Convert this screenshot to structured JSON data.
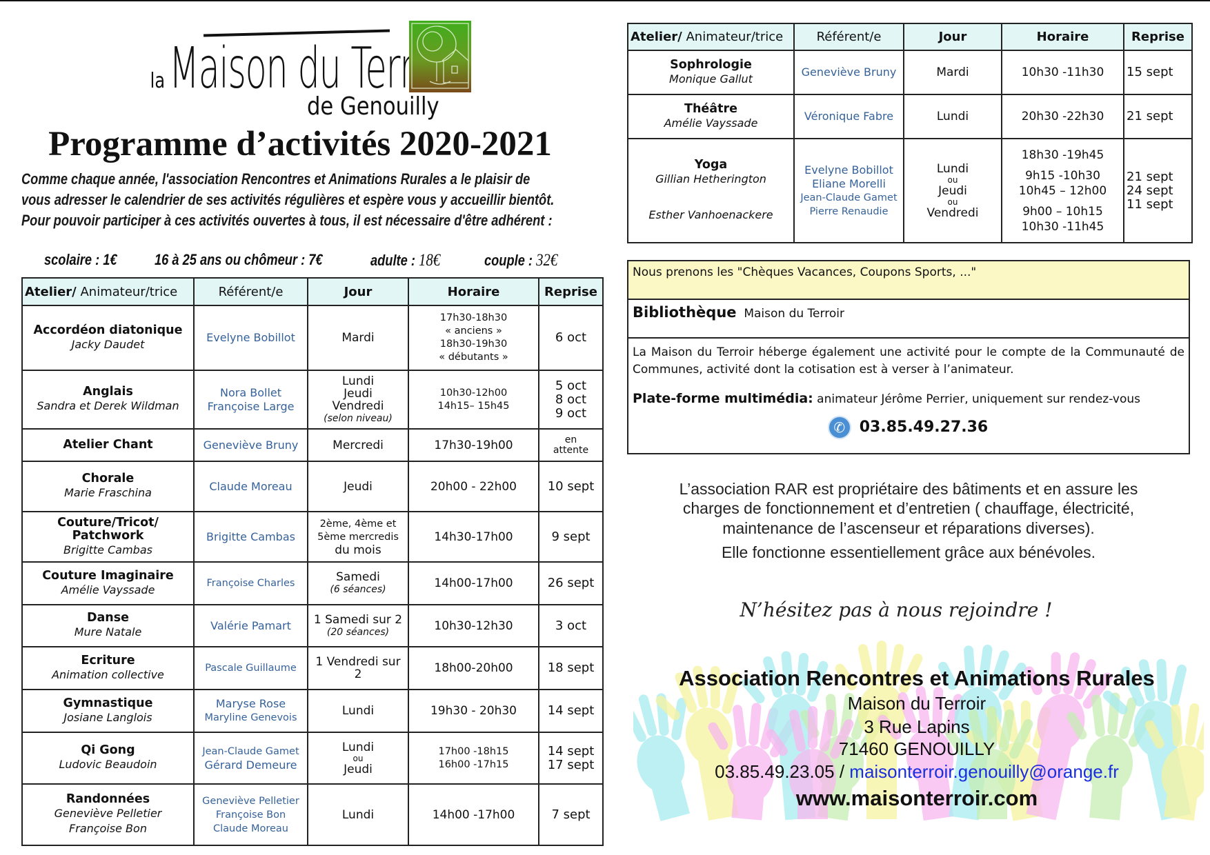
{
  "logo": {
    "prefix": "la",
    "name": "Maison du Terroir",
    "sub": "de Genouilly"
  },
  "title": "Programme d’activités 2020-2021",
  "intro": [
    "Comme chaque année, l'association Rencontres et Animations Rurales a le plaisir de",
    "vous adresser le calendrier de ses activités régulières et espère vous y accueillir bientôt.",
    "Pour pouvoir participer à ces activités ouvertes à tous, il est nécessaire d'être adhérent :"
  ],
  "prices": [
    {
      "label": "scolaire : ",
      "value": "1€"
    },
    {
      "label": "16 à 25 ans ou chômeur : ",
      "value": "7€"
    },
    {
      "label": "adulte : ",
      "value": "18€"
    },
    {
      "label": "couple : ",
      "value": "32€"
    }
  ],
  "headers": {
    "atelier": "Atelier/",
    "animateur": " Animateur/trice",
    "referent": "Référent/e",
    "jour": "Jour",
    "horaire": "Horaire",
    "reprise": "Reprise"
  },
  "left_rows": [
    {
      "name": [
        "Accordéon diatonique"
      ],
      "animators": [
        "Jacky Daudet"
      ],
      "referents": [
        "Evelyne Bobillot"
      ],
      "jour": [
        "Mardi"
      ],
      "horaire": [
        "17h30-18h30",
        "« anciens »",
        "18h30-19h30",
        "« débutants »"
      ],
      "reprise": [
        "6 oct"
      ]
    },
    {
      "name": [
        "Anglais"
      ],
      "animators": [
        "Sandra  et Derek Wildman"
      ],
      "referents": [
        "Nora Bollet",
        "Françoise Large"
      ],
      "jour": [
        "Lundi",
        "Jeudi",
        "Vendredi"
      ],
      "jour_note": "(selon niveau)",
      "horaire": [
        "10h30-12h00",
        "14h15– 15h45"
      ],
      "reprise": [
        "5 oct",
        "8 oct",
        "9 oct"
      ]
    },
    {
      "name": [
        "Atelier Chant"
      ],
      "animators": [],
      "referents": [
        "Geneviève Bruny"
      ],
      "jour": [
        "Mercredi"
      ],
      "horaire": [
        "17h30-19h00"
      ],
      "reprise": [
        "en",
        "attente"
      ]
    },
    {
      "name": [
        "Chorale"
      ],
      "animators": [
        "Marie Fraschina"
      ],
      "referents": [
        "Claude Moreau"
      ],
      "jour": [
        "Jeudi"
      ],
      "horaire": [
        "20h00 - 22h00"
      ],
      "reprise": [
        "10 sept"
      ]
    },
    {
      "name": [
        "Couture/Tricot/",
        "Patchwork"
      ],
      "animators": [
        "Brigitte Cambas"
      ],
      "referents": [
        "Brigitte Cambas"
      ],
      "jour": [
        "2ème, 4ème et",
        "5ème mercredis",
        "du mois"
      ],
      "horaire": [
        "14h30-17h00"
      ],
      "reprise": [
        "9 sept"
      ]
    },
    {
      "name": [
        "Couture Imaginaire"
      ],
      "animators": [
        "Amélie Vayssade"
      ],
      "referents": [
        "Françoise Charles"
      ],
      "jour": [
        "Samedi"
      ],
      "jour_note": "(6 séances)",
      "horaire": [
        "14h00-17h00"
      ],
      "reprise": [
        "26 sept"
      ]
    },
    {
      "name": [
        "Danse"
      ],
      "animators": [
        "Mure Natale"
      ],
      "referents": [
        "Valérie Pamart"
      ],
      "jour": [
        "1 Samedi sur 2"
      ],
      "jour_note": "(20 séances)",
      "horaire": [
        "10h30-12h30"
      ],
      "reprise": [
        "3 oct"
      ]
    },
    {
      "name": [
        "Ecriture"
      ],
      "animators": [
        "Animation collective"
      ],
      "referents": [
        "Pascale Guillaume"
      ],
      "jour": [
        "1 Vendredi sur",
        "2"
      ],
      "horaire": [
        "18h00-20h00"
      ],
      "reprise": [
        "18 sept"
      ]
    },
    {
      "name": [
        "Gymnastique"
      ],
      "animators": [
        "Josiane Langlois"
      ],
      "referents": [
        "Maryse Rose",
        "Maryline Genevois"
      ],
      "jour": [
        "Lundi"
      ],
      "horaire": [
        "19h30 - 20h30"
      ],
      "reprise": [
        "14 sept"
      ]
    },
    {
      "name": [
        "Qi Gong"
      ],
      "animators": [
        "Ludovic Beaudoin"
      ],
      "referents": [
        "Jean-Claude Gamet",
        "Gérard Demeure"
      ],
      "jour": [
        "Lundi",
        "ou",
        "Jeudi"
      ],
      "horaire": [
        "17h00 -18h15",
        "16h00 -17h15"
      ],
      "reprise": [
        "14 sept",
        "17 sept"
      ]
    },
    {
      "name": [
        "Randonnées"
      ],
      "animators": [
        "Geneviève Pelletier",
        "Françoise Bon"
      ],
      "referents": [
        "Geneviève Pelletier",
        "Françoise Bon",
        "Claude Moreau"
      ],
      "jour": [
        "Lundi"
      ],
      "horaire": [
        "14h00 -17h00"
      ],
      "reprise": [
        "7 sept"
      ]
    }
  ],
  "right_rows": [
    {
      "name": [
        "Sophrologie"
      ],
      "animators": [
        "Monique Gallut"
      ],
      "referents": [
        "Geneviève Bruny"
      ],
      "jour": [
        "Mardi"
      ],
      "horaire": [
        "10h30 -11h30"
      ],
      "reprise": [
        "15 sept"
      ]
    },
    {
      "name": [
        "Théâtre"
      ],
      "animators": [
        "Amélie Vayssade"
      ],
      "referents": [
        "Véronique Fabre"
      ],
      "jour": [
        "Lundi"
      ],
      "horaire": [
        "20h30 -22h30"
      ],
      "reprise": [
        "21 sept"
      ]
    },
    {
      "name": [
        "Yoga"
      ],
      "animators": [
        "Gillian Hetherington",
        "Esther Vanhoenackere"
      ],
      "referents": [
        "Evelyne Bobillot",
        "Eliane Morelli",
        "Jean-Claude Gamet",
        "Pierre Renaudie"
      ],
      "jour": [
        "Lundi",
        "ou",
        "Jeudi",
        "ou",
        "Vendredi"
      ],
      "horaire": [
        "18h30 -19h45",
        "9h15 -10h30",
        "10h45 – 12h00",
        "9h00 – 10h15",
        "10h30 -11h45"
      ],
      "reprise": [
        "21 sept",
        "24 sept",
        "11 sept"
      ]
    }
  ],
  "info": {
    "cheques": "Nous prenons les \"Chèques Vacances, Coupons Sports, ...\"",
    "biblio_title": "Bibliothèque",
    "biblio_place": "Maison du Terroir",
    "community": "La Maison du Terroir héberge également une activité pour le compte de la Communauté de Communes, activité dont la cotisation est à verser à l’animateur.",
    "plate_title": "Plate-forme multimédia:",
    "plate_text": " animateur Jérôme Perrier, uniquement sur rendez-vous",
    "phone": "03.85.49.27.36",
    "phone_icon": "phone-icon"
  },
  "rar_text": [
    "L’association RAR est propriétaire des bâtiments  et en assure les",
    "charges de fonctionnement et d’entretien ( chauffage, électricité,",
    "maintenance de l’ascenseur et réparations diverses).",
    "Elle fonctionne essentiellement grâce aux bénévoles."
  ],
  "join": "N’hésitez pas à nous rejoindre !",
  "contact": {
    "association": "Association Rencontres et Animations Rurales",
    "place": "Maison du Terroir",
    "street": "3 Rue Lapins",
    "city": "71460 GENOUILLY",
    "phone": "03.85.49.23.05 / ",
    "email": "maisonterroir.genouilly@orange.fr",
    "website": "www.maisonterroir.com"
  },
  "colors": {
    "header_bg": "#e2f6f6",
    "referent": "#36629a",
    "cheques_bg": "#fbf8c6",
    "email": "#1a2ee0",
    "hands": [
      "#a8ecf0",
      "#f7b8ef",
      "#f6f3a0",
      "#c6eeb4"
    ]
  }
}
